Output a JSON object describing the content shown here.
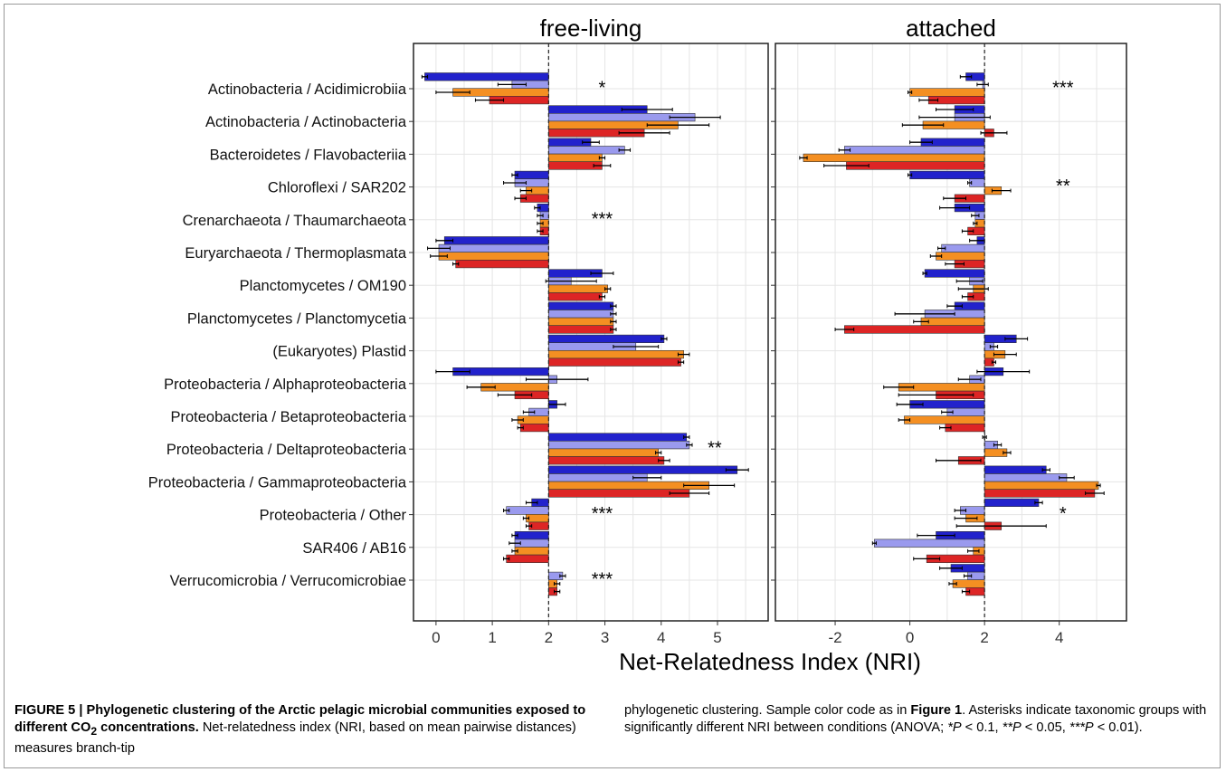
{
  "colors": {
    "series_colors": [
      "#2222cc",
      "#9a9aee",
      "#f48f22",
      "#dd2525"
    ],
    "grid": "#e5e5e5",
    "panel_border": "#222222"
  },
  "chart_data": [
    {
      "type": "bar",
      "orientation": "horizontal",
      "title": "free-living",
      "baseline": 2,
      "xlim": [
        -0.4,
        5.9
      ],
      "xticks": [
        0,
        1,
        2,
        3,
        4,
        5
      ],
      "xlabel": "Net-Relatedness Index (NRI)",
      "grid": true,
      "categories": [
        "Actinobacteria / Acidimicrobiia",
        "Actinobacteria / Actinobacteria",
        "Bacteroidetes / Flavobacteriia",
        "Chloroflexi / SAR202",
        "Crenarchaeota / Thaumarchaeota",
        "Euryarchaeota / Thermoplasmata",
        "Planctomycetes / OM190",
        "Planctomycetes / Planctomycetia",
        "(Eukaryotes) Plastid",
        "Proteobacteria / Alphaproteobacteria",
        "Proteobacteria / Betaproteobacteria",
        "Proteobacteria / Deltaproteobacteria",
        "Proteobacteria / Gammaproteobacteria",
        "Proteobacteria / Other",
        "SAR406 / AB16",
        "Verrucomicrobia / Verrucomicrobiae"
      ],
      "series": [
        {
          "values": [
            -0.2,
            3.75,
            2.75,
            1.4,
            1.8,
            0.15,
            2.95,
            3.15,
            4.05,
            0.3,
            2.15,
            4.45,
            5.35,
            1.7,
            1.4,
            null
          ],
          "errors": [
            0.05,
            0.45,
            0.15,
            0.05,
            0.05,
            0.15,
            0.2,
            0.05,
            0.05,
            0.3,
            0.15,
            0.05,
            0.2,
            0.1,
            0.05,
            null
          ]
        },
        {
          "values": [
            1.35,
            4.6,
            3.35,
            1.4,
            1.85,
            0.05,
            2.4,
            3.15,
            3.55,
            2.15,
            1.65,
            4.5,
            3.75,
            1.25,
            1.4,
            2.25
          ],
          "errors": [
            0.25,
            0.45,
            0.1,
            0.2,
            0.05,
            0.2,
            0.45,
            0.05,
            0.4,
            0.55,
            0.1,
            0.05,
            0.25,
            0.05,
            0.1,
            0.05
          ]
        },
        {
          "values": [
            0.3,
            4.3,
            2.95,
            1.6,
            1.85,
            0.05,
            3.05,
            3.15,
            4.4,
            0.8,
            1.45,
            3.95,
            4.85,
            1.6,
            1.4,
            2.15
          ],
          "errors": [
            0.3,
            0.55,
            0.05,
            0.1,
            0.05,
            0.15,
            0.05,
            0.05,
            0.1,
            0.25,
            0.1,
            0.05,
            0.45,
            0.05,
            0.05,
            0.05
          ]
        },
        {
          "values": [
            0.95,
            3.7,
            2.95,
            1.5,
            1.85,
            0.35,
            2.95,
            3.15,
            4.35,
            1.4,
            1.5,
            4.05,
            4.5,
            1.65,
            1.25,
            2.15
          ],
          "errors": [
            0.25,
            0.45,
            0.15,
            0.1,
            0.05,
            0.05,
            0.05,
            0.05,
            0.05,
            0.3,
            0.05,
            0.1,
            0.35,
            0.05,
            0.05,
            0.05
          ]
        }
      ],
      "significance": [
        "*",
        "",
        "",
        "",
        "***",
        "",
        "",
        "",
        "",
        "",
        "",
        "**",
        "",
        "***",
        "",
        "***"
      ]
    },
    {
      "type": "bar",
      "orientation": "horizontal",
      "title": "attached",
      "baseline": 2,
      "xlim": [
        -3.6,
        5.8
      ],
      "xticks": [
        -2,
        0,
        2,
        4
      ],
      "grid": true,
      "categories": [
        "Actinobacteria / Acidimicrobiia",
        "Actinobacteria / Actinobacteria",
        "Bacteroidetes / Flavobacteriia",
        "Chloroflexi / SAR202",
        "Crenarchaeota / Thaumarchaeota",
        "Euryarchaeota / Thermoplasmata",
        "Planctomycetes / OM190",
        "Planctomycetes / Planctomycetia",
        "(Eukaryotes) Plastid",
        "Proteobacteria / Alphaproteobacteria",
        "Proteobacteria / Betaproteobacteria",
        "Proteobacteria / Deltaproteobacteria",
        "Proteobacteria / Gammaproteobacteria",
        "Proteobacteria / Other",
        "SAR406 / AB16",
        "Verrucomicrobia / Verrucomicrobiae"
      ],
      "series": [
        {
          "values": [
            1.5,
            1.2,
            0.3,
            0.0,
            1.2,
            1.8,
            0.4,
            1.2,
            2.85,
            2.5,
            0.0,
            2.0,
            3.65,
            3.45,
            0.7,
            1.1
          ],
          "errors": [
            0.15,
            0.5,
            0.3,
            0.05,
            0.4,
            0.2,
            0.05,
            0.2,
            0.3,
            0.7,
            0.35,
            0.05,
            0.1,
            0.1,
            0.5,
            0.3
          ]
        },
        {
          "values": [
            1.95,
            1.2,
            -1.75,
            1.6,
            1.75,
            0.85,
            1.6,
            0.4,
            2.25,
            1.6,
            1.0,
            2.35,
            4.2,
            1.35,
            -0.95,
            1.55
          ],
          "errors": [
            0.15,
            0.95,
            0.15,
            0.05,
            0.1,
            0.1,
            0.35,
            0.8,
            0.1,
            0.3,
            0.15,
            0.1,
            0.2,
            0.15,
            0.05,
            0.1
          ]
        },
        {
          "values": [
            0.0,
            0.35,
            -2.85,
            2.45,
            1.75,
            0.7,
            1.7,
            0.3,
            2.55,
            -0.3,
            -0.15,
            2.6,
            5.05,
            1.5,
            1.7,
            1.15
          ],
          "errors": [
            0.05,
            0.55,
            0.1,
            0.25,
            0.05,
            0.15,
            0.4,
            0.2,
            0.3,
            0.4,
            0.15,
            0.1,
            0.05,
            0.3,
            0.15,
            0.1
          ]
        },
        {
          "values": [
            0.5,
            2.25,
            -1.7,
            1.2,
            1.55,
            1.2,
            1.55,
            -1.75,
            2.25,
            0.7,
            0.95,
            1.3,
            4.95,
            2.45,
            0.45,
            1.5
          ],
          "errors": [
            0.25,
            0.35,
            0.6,
            0.3,
            0.15,
            0.25,
            0.15,
            0.25,
            0.05,
            1.0,
            0.15,
            0.6,
            0.25,
            1.2,
            0.35,
            0.1
          ]
        }
      ],
      "significance": [
        "***",
        "",
        "",
        "**",
        "",
        "",
        "",
        "",
        "",
        "",
        "",
        "",
        "",
        "*",
        "",
        ""
      ]
    }
  ],
  "caption": {
    "left": {
      "bold_a": "FIGURE 5 | Phylogenetic clustering of the Arctic pelagic microbial communities exposed to different CO",
      "bold_sub": "2",
      "bold_b": " concentrations.",
      "text": " Net-relatedness index (NRI, based on mean pairwise distances) measures branch-tip"
    },
    "right": {
      "text_a": "phylogenetic clustering. Sample color code as in ",
      "bold_ref": "Figure 1",
      "text_b": ". Asterisks indicate taxonomic groups with significantly different NRI between conditions (ANOVA; ",
      "sig1": "*P",
      "sig1_val": " < 0.1, ",
      "sig2": "**P",
      "sig2_val": " < 0.05, ",
      "sig3": "***P",
      "sig3_val": " < 0.01)."
    }
  }
}
